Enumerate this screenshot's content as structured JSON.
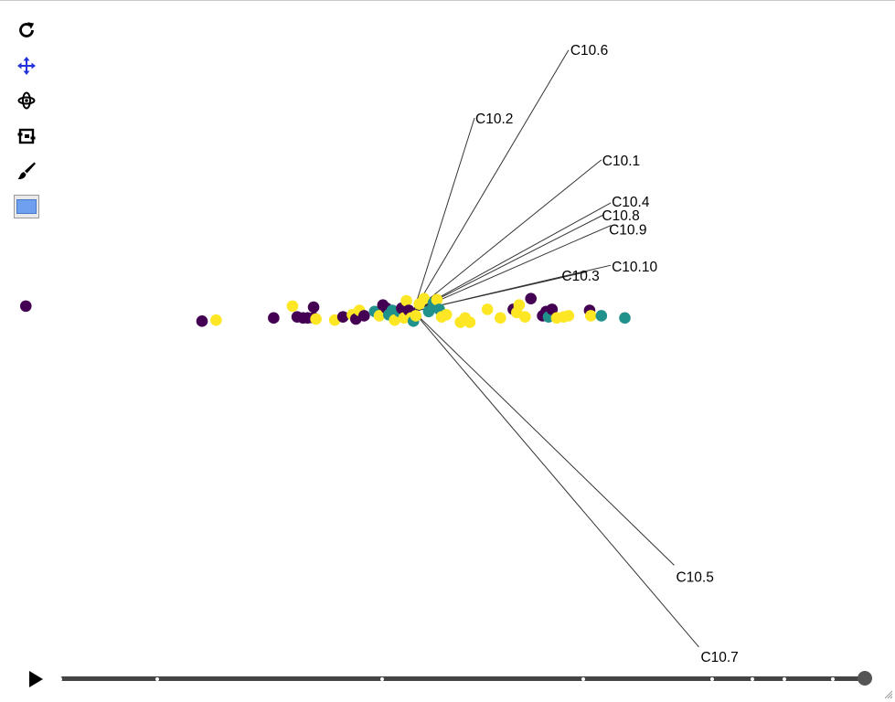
{
  "toolbar": {
    "tools": [
      {
        "name": "reset-view-icon",
        "active": false
      },
      {
        "name": "pan-icon",
        "active": true,
        "color": "#2233dd"
      },
      {
        "name": "rotate-icon",
        "active": false
      },
      {
        "name": "zoom-box-icon",
        "active": false
      },
      {
        "name": "brush-icon",
        "active": false
      },
      {
        "name": "color-swatch-icon",
        "active": false,
        "color": "#6fa0ef"
      }
    ]
  },
  "player": {
    "icon": "play-icon",
    "frames": [
      0,
      0.12,
      0.4,
      0.65,
      0.81,
      0.86,
      0.9,
      0.96,
      1
    ],
    "current": 1
  },
  "chart_data": {
    "type": "scatter",
    "title": "",
    "xlabel": "",
    "ylabel": "",
    "grid": false,
    "xlim": [
      -3.52,
      4.1
    ],
    "ylim": [
      -3.3,
      2.65
    ],
    "class_colors": [
      "#440154",
      "#21918c",
      "#fde725"
    ],
    "points": [
      {
        "x": -3.3,
        "y": 0.05,
        "c": 0
      },
      {
        "x": -1.8,
        "y": -0.09,
        "c": 0
      },
      {
        "x": -1.68,
        "y": -0.08,
        "c": 2
      },
      {
        "x": -1.19,
        "y": -0.06,
        "c": 0
      },
      {
        "x": -1.03,
        "y": 0.05,
        "c": 2
      },
      {
        "x": -0.99,
        "y": -0.05,
        "c": 0
      },
      {
        "x": -0.94,
        "y": -0.06,
        "c": 0
      },
      {
        "x": -0.9,
        "y": -0.06,
        "c": 0
      },
      {
        "x": -0.85,
        "y": -0.06,
        "c": 0
      },
      {
        "x": -0.85,
        "y": 0.04,
        "c": 0
      },
      {
        "x": -0.83,
        "y": -0.07,
        "c": 2
      },
      {
        "x": -0.67,
        "y": -0.08,
        "c": 2
      },
      {
        "x": -0.6,
        "y": -0.05,
        "c": 0
      },
      {
        "x": -0.52,
        "y": -0.03,
        "c": 2
      },
      {
        "x": -0.49,
        "y": -0.07,
        "c": 0
      },
      {
        "x": -0.46,
        "y": 0.01,
        "c": 2
      },
      {
        "x": -0.42,
        "y": -0.04,
        "c": 0
      },
      {
        "x": -0.33,
        "y": 0.0,
        "c": 1
      },
      {
        "x": -0.29,
        "y": -0.04,
        "c": 2
      },
      {
        "x": -0.26,
        "y": 0.06,
        "c": 0
      },
      {
        "x": -0.23,
        "y": 0.03,
        "c": 0
      },
      {
        "x": -0.21,
        "y": -0.03,
        "c": 1
      },
      {
        "x": -0.18,
        "y": 0.01,
        "c": 1
      },
      {
        "x": -0.16,
        "y": -0.08,
        "c": 2
      },
      {
        "x": -0.12,
        "y": 0.0,
        "c": 1
      },
      {
        "x": -0.1,
        "y": 0.03,
        "c": 0
      },
      {
        "x": -0.08,
        "y": -0.06,
        "c": 2
      },
      {
        "x": -0.06,
        "y": 0.1,
        "c": 2
      },
      {
        "x": -0.04,
        "y": 0.01,
        "c": 0
      },
      {
        "x": -0.02,
        "y": -0.06,
        "c": 2
      },
      {
        "x": 0.0,
        "y": -0.09,
        "c": 1
      },
      {
        "x": 0.02,
        "y": -0.04,
        "c": 2
      },
      {
        "x": 0.05,
        "y": 0.07,
        "c": 2
      },
      {
        "x": 0.09,
        "y": 0.12,
        "c": 2
      },
      {
        "x": 0.13,
        "y": 0.0,
        "c": 1
      },
      {
        "x": 0.17,
        "y": 0.08,
        "c": 1
      },
      {
        "x": 0.2,
        "y": 0.11,
        "c": 2
      },
      {
        "x": 0.22,
        "y": 0.02,
        "c": 1
      },
      {
        "x": 0.24,
        "y": -0.05,
        "c": 2
      },
      {
        "x": 0.28,
        "y": -0.03,
        "c": 2
      },
      {
        "x": 0.4,
        "y": -0.1,
        "c": 2
      },
      {
        "x": 0.44,
        "y": -0.06,
        "c": 2
      },
      {
        "x": 0.48,
        "y": -0.1,
        "c": 2
      },
      {
        "x": 0.63,
        "y": 0.02,
        "c": 2
      },
      {
        "x": 0.74,
        "y": -0.06,
        "c": 2
      },
      {
        "x": 0.85,
        "y": 0.02,
        "c": 0
      },
      {
        "x": 0.88,
        "y": -0.01,
        "c": 2
      },
      {
        "x": 0.9,
        "y": 0.06,
        "c": 2
      },
      {
        "x": 0.95,
        "y": -0.05,
        "c": 2
      },
      {
        "x": 1.0,
        "y": 0.12,
        "c": 0
      },
      {
        "x": 1.1,
        "y": -0.04,
        "c": 0
      },
      {
        "x": 1.13,
        "y": 0.0,
        "c": 0
      },
      {
        "x": 1.15,
        "y": -0.05,
        "c": 1
      },
      {
        "x": 1.18,
        "y": 0.02,
        "c": 0
      },
      {
        "x": 1.22,
        "y": -0.06,
        "c": 2
      },
      {
        "x": 1.28,
        "y": -0.05,
        "c": 2
      },
      {
        "x": 1.32,
        "y": -0.04,
        "c": 2
      },
      {
        "x": 1.5,
        "y": 0.01,
        "c": 0
      },
      {
        "x": 1.51,
        "y": -0.04,
        "c": 2
      },
      {
        "x": 1.6,
        "y": -0.04,
        "c": 1
      },
      {
        "x": 1.8,
        "y": -0.06,
        "c": 1
      }
    ],
    "vectors": [
      {
        "label": "C10.6",
        "x": 1.32,
        "y": 2.43
      },
      {
        "label": "C10.2",
        "x": 0.52,
        "y": 1.8
      },
      {
        "label": "C10.1",
        "x": 1.6,
        "y": 1.41
      },
      {
        "label": "C10.4",
        "x": 1.68,
        "y": 1.01
      },
      {
        "label": "C10.8",
        "x": 1.62,
        "y": 0.9
      },
      {
        "label": "C10.9",
        "x": 1.68,
        "y": 0.8
      },
      {
        "label": "C10.10",
        "x": 1.68,
        "y": 0.43
      },
      {
        "label": "C10.3",
        "x": 1.48,
        "y": 0.37
      },
      {
        "label": "C10.5",
        "x": 2.22,
        "y": -2.36
      },
      {
        "label": "C10.7",
        "x": 2.43,
        "y": -3.12
      }
    ]
  }
}
